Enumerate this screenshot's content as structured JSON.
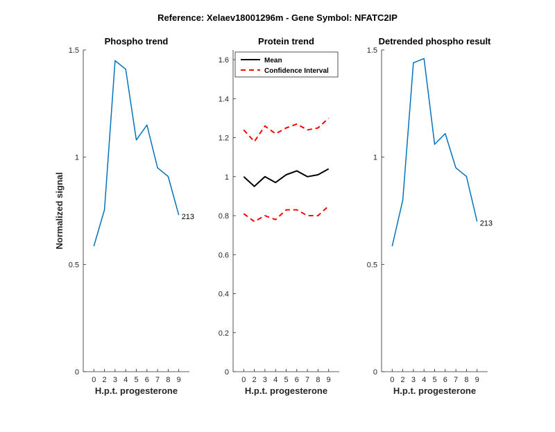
{
  "figure": {
    "suptitle": "Reference:  Xelaev18001296m - Gene Symbol:  NFATC2IP"
  },
  "chart_data": [
    {
      "type": "line",
      "title": "Phospho trend",
      "xlabel": "H.p.t. progesterone",
      "ylabel": "Normalized signal",
      "categories": [
        "0",
        "2",
        "3",
        "4",
        "5",
        "6",
        "7",
        "8",
        "9"
      ],
      "ylim": [
        0,
        1.5
      ],
      "yticks": [
        0,
        0.5,
        1,
        1.5
      ],
      "ytick_labels": [
        "0",
        "0.5",
        "1",
        "1.5"
      ],
      "series": [
        {
          "values": [
            0.585,
            0.755,
            1.45,
            1.41,
            1.08,
            1.15,
            0.95,
            0.91,
            0.73
          ],
          "color": "#0072BD"
        }
      ],
      "end_label": "213"
    },
    {
      "type": "line",
      "title": "Protein trend",
      "xlabel": "H.p.t. progesterone",
      "ylabel": "",
      "categories": [
        "0",
        "2",
        "3",
        "4",
        "5",
        "6",
        "7",
        "8",
        "9"
      ],
      "ylim": [
        0,
        1.65
      ],
      "yticks": [
        0,
        0.2,
        0.4,
        0.6,
        0.8,
        1,
        1.2,
        1.4,
        1.6
      ],
      "ytick_labels": [
        "0",
        "0.2",
        "0.4",
        "0.6",
        "0.8",
        "1",
        "1.2",
        "1.4",
        "1.6"
      ],
      "series": [
        {
          "name": "Mean",
          "values": [
            1.0,
            0.95,
            1.0,
            0.97,
            1.01,
            1.03,
            1.0,
            1.01,
            1.04
          ],
          "color": "#000000",
          "style": "solid"
        },
        {
          "name": "Confidence Interval",
          "values": [
            1.24,
            1.18,
            1.26,
            1.22,
            1.25,
            1.27,
            1.24,
            1.25,
            1.3
          ],
          "color": "#FF0000",
          "style": "dashed"
        },
        {
          "name": "",
          "values": [
            0.81,
            0.77,
            0.8,
            0.78,
            0.83,
            0.83,
            0.8,
            0.8,
            0.85
          ],
          "color": "#FF0000",
          "style": "dashed"
        }
      ],
      "legend": {
        "placement": "top-left",
        "entries": [
          {
            "label": "Mean",
            "color": "#000000",
            "style": "solid"
          },
          {
            "label": "Confidence Interval",
            "color": "#FF0000",
            "style": "dashed"
          }
        ]
      }
    },
    {
      "type": "line",
      "title": "Detrended phospho result",
      "xlabel": "H.p.t. progesterone",
      "ylabel": "",
      "categories": [
        "0",
        "2",
        "3",
        "4",
        "5",
        "6",
        "7",
        "8",
        "9"
      ],
      "ylim": [
        0,
        1.5
      ],
      "yticks": [
        0,
        0.5,
        1,
        1.5
      ],
      "ytick_labels": [
        "0",
        "0.5",
        "1",
        "1.5"
      ],
      "series": [
        {
          "values": [
            0.585,
            0.8,
            1.44,
            1.46,
            1.06,
            1.11,
            0.95,
            0.91,
            0.7
          ],
          "color": "#0072BD"
        }
      ],
      "end_label": "213"
    }
  ]
}
